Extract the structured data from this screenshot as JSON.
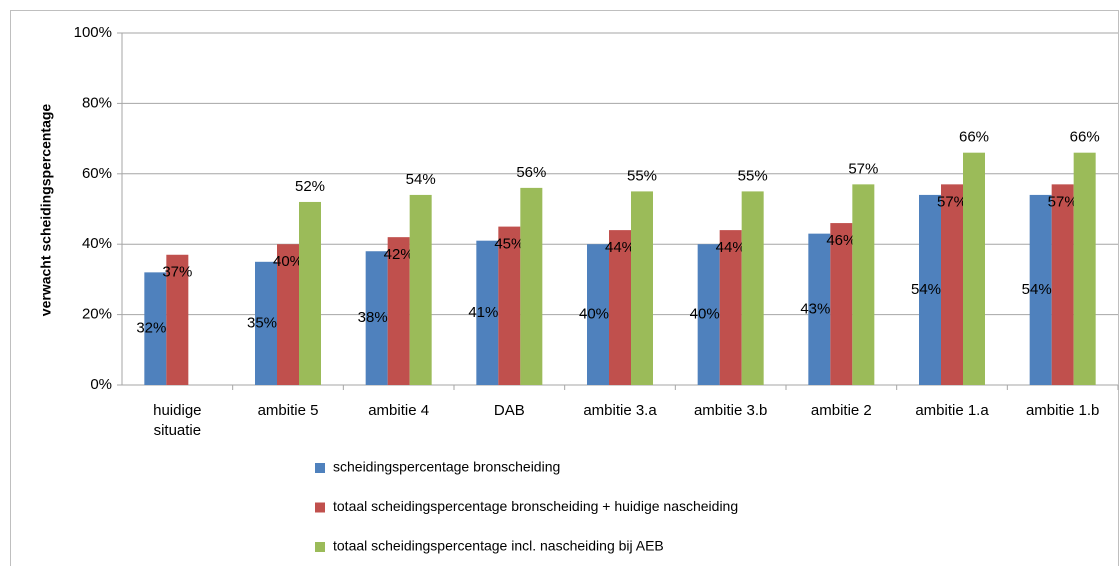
{
  "chart_data": {
    "type": "bar",
    "y_axis_label": "verwacht scheidingspercentage",
    "categories": [
      "huidige situatie",
      "ambitie 5",
      "ambitie 4",
      "DAB",
      "ambitie 3.a",
      "ambitie 3.b",
      "ambitie 2",
      "ambitie 1.a",
      "ambitie 1.b"
    ],
    "series": [
      {
        "name": "scheidingspercentage bronscheiding",
        "color": "#4f81bd",
        "values": [
          32,
          35,
          38,
          41,
          40,
          40,
          43,
          54,
          54
        ],
        "value_labels": [
          "32%",
          "35%",
          "38%",
          "41%",
          "40%",
          "40%",
          "43%",
          "54%",
          "54%"
        ]
      },
      {
        "name": "totaal scheidingspercentage bronscheiding + huidige nascheiding",
        "color": "#c0504d",
        "values": [
          37,
          40,
          42,
          45,
          44,
          44,
          46,
          57,
          57
        ],
        "value_labels": [
          "37%",
          "40%",
          "42%",
          "45%",
          "44%",
          "44%",
          "46%",
          "57%",
          "57%"
        ]
      },
      {
        "name": "totaal scheidingspercentage incl. nascheiding bij AEB",
        "color": "#9bbb59",
        "values": [
          null,
          52,
          54,
          56,
          55,
          55,
          57,
          66,
          66
        ],
        "value_labels": [
          null,
          "52%",
          "54%",
          "56%",
          "55%",
          "55%",
          "57%",
          "66%",
          "66%"
        ]
      }
    ],
    "ylim": [
      0,
      100
    ],
    "yticks": [
      {
        "value": 0,
        "label": "0%"
      },
      {
        "value": 20,
        "label": "20%"
      },
      {
        "value": 40,
        "label": "40%"
      },
      {
        "value": 60,
        "label": "60%"
      },
      {
        "value": 80,
        "label": "80%"
      },
      {
        "value": 100,
        "label": "100%"
      }
    ],
    "grid": true,
    "legend": "bottom"
  }
}
